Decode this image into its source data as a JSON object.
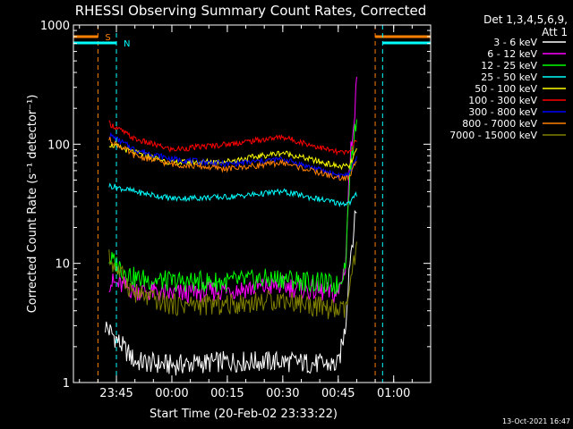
{
  "chart_data": {
    "type": "line",
    "title": "RHESSI Observing Summary Count Rates, Corrected",
    "xlabel": "Start Time (20-Feb-02 23:33:22)",
    "ylabel": "Corrected Count Rate (s⁻¹ detector⁻¹)",
    "y_scale": "log",
    "ylim": [
      1,
      1000
    ],
    "xlim": [
      "23:33:22",
      "01:10:00"
    ],
    "x_ticks": [
      "23:45",
      "00:00",
      "00:15",
      "00:30",
      "00:45",
      "01:00"
    ],
    "y_ticks": [
      "1",
      "10",
      "100",
      "1000"
    ],
    "legend_title": [
      "Det 1,3,4,5,6,9,",
      "Att 1"
    ],
    "legend_position": "right",
    "timestamp": "13-Oct-2021 16:47",
    "markers": [
      {
        "label": "S",
        "color": "#ff8000",
        "times": [
          "23:40",
          "00:55"
        ]
      },
      {
        "label": "N",
        "color": "#00ffff",
        "times": [
          "23:45",
          "00:57"
        ]
      }
    ],
    "series": [
      {
        "name": "3 - 6 keV",
        "color": "#ffffff",
        "x": [
          "23:42",
          "23:50",
          "00:00",
          "00:15",
          "00:30",
          "00:45",
          "00:47",
          "00:48",
          "00:50"
        ],
        "values": [
          3,
          1.5,
          1.4,
          1.5,
          1.5,
          1.4,
          3,
          10,
          30
        ]
      },
      {
        "name": "6 - 12 keV",
        "color": "#ff00ff",
        "x": [
          "23:43",
          "23:50",
          "00:00",
          "00:15",
          "00:30",
          "00:45",
          "00:47",
          "00:48",
          "00:50"
        ],
        "values": [
          7,
          6,
          5.5,
          6,
          6.5,
          5.5,
          10,
          60,
          320
        ]
      },
      {
        "name": "12 - 25 keV",
        "color": "#00ff00",
        "x": [
          "23:43",
          "23:50",
          "00:00",
          "00:15",
          "00:30",
          "00:45",
          "00:47",
          "00:48",
          "00:50"
        ],
        "values": [
          11,
          7.5,
          7,
          7,
          7.5,
          6.5,
          10,
          50,
          180
        ]
      },
      {
        "name": "25 - 50 keV",
        "color": "#00ffff",
        "x": [
          "23:43",
          "23:50",
          "00:00",
          "00:15",
          "00:30",
          "00:45",
          "00:48",
          "00:50"
        ],
        "values": [
          45,
          40,
          35,
          36,
          40,
          32,
          32,
          38
        ]
      },
      {
        "name": "50 - 100 keV",
        "color": "#ffff00",
        "x": [
          "23:43",
          "23:50",
          "00:00",
          "00:15",
          "00:30",
          "00:45",
          "00:48",
          "00:50"
        ],
        "values": [
          100,
          85,
          70,
          72,
          85,
          65,
          65,
          90
        ]
      },
      {
        "name": "100 - 300 keV",
        "color": "#ff0000",
        "x": [
          "23:43",
          "23:50",
          "00:00",
          "00:15",
          "00:30",
          "00:45",
          "00:48",
          "00:50"
        ],
        "values": [
          150,
          110,
          90,
          100,
          115,
          85,
          85,
          110
        ]
      },
      {
        "name": "300 - 800 keV",
        "color": "#0000ff",
        "x": [
          "23:43",
          "23:50",
          "00:00",
          "00:15",
          "00:30",
          "00:45",
          "00:48",
          "00:50"
        ],
        "values": [
          120,
          90,
          75,
          68,
          75,
          55,
          55,
          80
        ]
      },
      {
        "name": "800 - 7000 keV",
        "color": "#ff8000",
        "x": [
          "23:43",
          "23:50",
          "00:00",
          "00:15",
          "00:30",
          "00:45",
          "00:48",
          "00:50"
        ],
        "values": [
          110,
          80,
          68,
          62,
          70,
          52,
          52,
          75
        ]
      },
      {
        "name": "7000 - 15000 keV",
        "color": "#808000",
        "x": [
          "23:43",
          "23:50",
          "00:00",
          "00:15",
          "00:30",
          "00:45",
          "00:47",
          "00:50"
        ],
        "values": [
          11,
          5.5,
          4.5,
          4.5,
          5,
          4,
          4,
          13
        ]
      }
    ]
  }
}
